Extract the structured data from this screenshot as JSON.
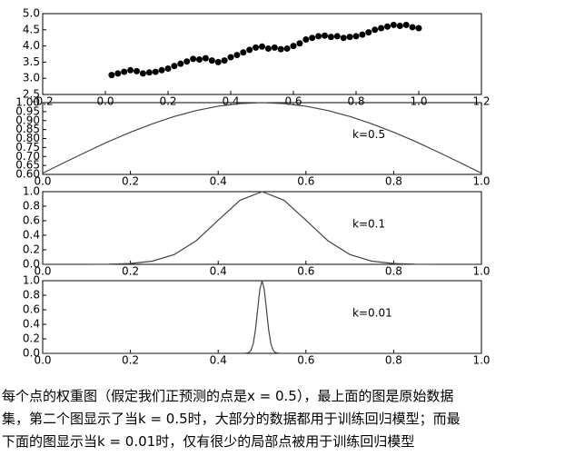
{
  "chart_data": [
    {
      "type": "scatter",
      "color": "#000000",
      "x": [
        0.02,
        0.04,
        0.06,
        0.08,
        0.1,
        0.12,
        0.14,
        0.16,
        0.18,
        0.2,
        0.22,
        0.24,
        0.26,
        0.28,
        0.3,
        0.32,
        0.34,
        0.36,
        0.38,
        0.4,
        0.42,
        0.44,
        0.46,
        0.48,
        0.5,
        0.52,
        0.54,
        0.56,
        0.58,
        0.6,
        0.62,
        0.64,
        0.66,
        0.68,
        0.7,
        0.72,
        0.74,
        0.76,
        0.78,
        0.8,
        0.82,
        0.84,
        0.86,
        0.88,
        0.9,
        0.92,
        0.94,
        0.96,
        0.98,
        1.0
      ],
      "values": [
        3.1,
        3.15,
        3.2,
        3.25,
        3.22,
        3.15,
        3.18,
        3.2,
        3.25,
        3.3,
        3.38,
        3.45,
        3.52,
        3.6,
        3.58,
        3.62,
        3.55,
        3.5,
        3.55,
        3.65,
        3.72,
        3.8,
        3.88,
        3.95,
        3.98,
        3.92,
        3.95,
        3.9,
        3.92,
        4.0,
        4.08,
        4.2,
        4.25,
        4.3,
        4.32,
        4.28,
        4.3,
        4.25,
        4.28,
        4.3,
        4.35,
        4.42,
        4.5,
        4.55,
        4.6,
        4.65,
        4.62,
        4.65,
        4.58,
        4.55
      ],
      "xlim": [
        -0.2,
        1.2
      ],
      "xticks": [
        -0.2,
        {
          "value": 0,
          "label": "0.0"
        },
        0.2,
        0.4,
        0.6,
        0.8,
        {
          "value": 1,
          "label": "1.0"
        },
        1.2
      ],
      "ylim": [
        2.5,
        5.0
      ],
      "yticks": [
        2.5,
        {
          "value": 3,
          "label": "3.0"
        },
        3.5,
        {
          "value": 4,
          "label": "4.0"
        },
        4.5,
        {
          "value": 5,
          "label": "5.0"
        }
      ]
    },
    {
      "type": "line",
      "color": "#444444",
      "annotation": "k=0.5",
      "x": [
        0,
        0.05,
        0.1,
        0.15,
        0.2,
        0.25,
        0.3,
        0.35,
        0.4,
        0.45,
        0.5,
        0.55,
        0.6,
        0.65,
        0.7,
        0.75,
        0.8,
        0.85,
        0.9,
        0.95,
        1
      ],
      "values": [
        0.607,
        0.667,
        0.726,
        0.783,
        0.835,
        0.882,
        0.923,
        0.956,
        0.98,
        0.995,
        1,
        0.995,
        0.98,
        0.956,
        0.923,
        0.882,
        0.835,
        0.783,
        0.726,
        0.667,
        0.607
      ],
      "xlim": [
        0,
        1
      ],
      "xticks": [
        {
          "value": 0,
          "label": "0.0"
        },
        0.2,
        0.4,
        0.6,
        0.8,
        {
          "value": 1,
          "label": "1.0"
        }
      ],
      "ylim": [
        0.6,
        1.0
      ],
      "yticks": [
        {
          "value": 0.6,
          "label": "0.60"
        },
        0.65,
        {
          "value": 0.7,
          "label": "0.70"
        },
        0.75,
        {
          "value": 0.8,
          "label": "0.80"
        },
        0.85,
        {
          "value": 0.9,
          "label": "0.90"
        },
        0.95,
        {
          "value": 1,
          "label": "1.00"
        }
      ]
    },
    {
      "type": "line",
      "color": "#444444",
      "annotation": "k=0.1",
      "x": [
        0,
        0.05,
        0.1,
        0.15,
        0.2,
        0.25,
        0.3,
        0.35,
        0.4,
        0.45,
        0.5,
        0.55,
        0.6,
        0.65,
        0.7,
        0.75,
        0.8,
        0.85,
        0.9,
        0.95,
        1
      ],
      "values": [
        0,
        0,
        0,
        0.002,
        0.011,
        0.044,
        0.135,
        0.325,
        0.607,
        0.882,
        1,
        0.882,
        0.607,
        0.325,
        0.135,
        0.044,
        0.011,
        0.002,
        0,
        0,
        0
      ],
      "xlim": [
        0,
        1
      ],
      "xticks": [
        {
          "value": 0,
          "label": "0.0"
        },
        0.2,
        0.4,
        0.6,
        0.8,
        {
          "value": 1,
          "label": "1.0"
        }
      ],
      "ylim": [
        0,
        1
      ],
      "yticks": [
        {
          "value": 0,
          "label": "0.0"
        },
        0.2,
        0.4,
        0.6,
        0.8,
        {
          "value": 1,
          "label": "1.0"
        }
      ]
    },
    {
      "type": "line",
      "color": "#444444",
      "annotation": "k=0.01",
      "x": [
        0,
        0.46,
        0.47,
        0.475,
        0.48,
        0.485,
        0.49,
        0.495,
        0.5,
        0.505,
        0.51,
        0.515,
        0.52,
        0.525,
        0.53,
        0.54,
        1
      ],
      "values": [
        0,
        0,
        0.011,
        0.044,
        0.135,
        0.325,
        0.607,
        0.882,
        1,
        0.882,
        0.607,
        0.325,
        0.135,
        0.044,
        0.011,
        0,
        0
      ],
      "xlim": [
        0,
        1
      ],
      "xticks": [
        {
          "value": 0,
          "label": "0.0"
        },
        0.2,
        0.4,
        0.6,
        0.8,
        {
          "value": 1,
          "label": "1.0"
        }
      ],
      "ylim": [
        0,
        1
      ],
      "yticks": [
        {
          "value": 0,
          "label": "0.0"
        },
        0.2,
        0.4,
        0.6,
        0.8,
        {
          "value": 1,
          "label": "1.0"
        }
      ]
    }
  ],
  "caption": [
    "每个点的权重图（假定我们正预测的点是x = 0.5），最上面的图是原始数据",
    "集，第二个图显示了当k = 0.5时，大部分的数据都用于训练回归模型；而最",
    "下面的图显示当k = 0.01时，仅有很少的局部点被用于训练回归模型"
  ]
}
